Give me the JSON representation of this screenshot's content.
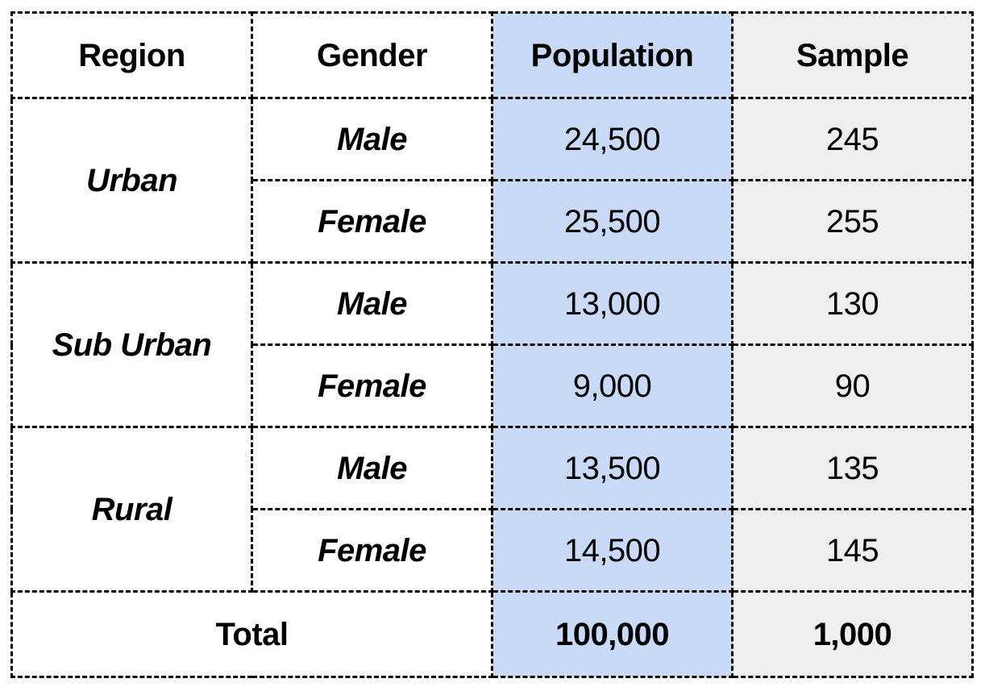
{
  "chart_data": {
    "type": "table",
    "title": "",
    "columns": [
      "Region",
      "Gender",
      "Population",
      "Sample"
    ],
    "rows": [
      [
        "Urban",
        "Male",
        24500,
        245
      ],
      [
        "Urban",
        "Female",
        25500,
        255
      ],
      [
        "Sub Urban",
        "Male",
        13000,
        130
      ],
      [
        "Sub Urban",
        "Female",
        9000,
        90
      ],
      [
        "Rural",
        "Male",
        13500,
        135
      ],
      [
        "Rural",
        "Female",
        14500,
        145
      ]
    ],
    "total_row": [
      "Total",
      100000,
      1000
    ],
    "layout_hints": {
      "merged_cells": "region cells span 2 gender rows; Total spans Region+Gender columns",
      "population_column_highlight": "#c9daf8",
      "sample_column_highlight": "#efefef",
      "border_style": "dashed black"
    }
  },
  "table": {
    "headers": {
      "region": "Region",
      "gender": "Gender",
      "population": "Population",
      "sample": "Sample"
    },
    "groups": [
      {
        "region": "Urban",
        "rows": [
          {
            "gender": "Male",
            "population": "24,500",
            "sample": "245"
          },
          {
            "gender": "Female",
            "population": "25,500",
            "sample": "255"
          }
        ]
      },
      {
        "region": "Sub Urban",
        "rows": [
          {
            "gender": "Male",
            "population": "13,000",
            "sample": "130"
          },
          {
            "gender": "Female",
            "population": "9,000",
            "sample": "90"
          }
        ]
      },
      {
        "region": "Rural",
        "rows": [
          {
            "gender": "Male",
            "population": "13,500",
            "sample": "135"
          },
          {
            "gender": "Female",
            "population": "14,500",
            "sample": "145"
          }
        ]
      }
    ],
    "total": {
      "label": "Total",
      "population": "100,000",
      "sample": "1,000"
    }
  },
  "colors": {
    "population_column_bg": "#c9daf8",
    "sample_column_bg": "#efefef",
    "border": "#000000",
    "text": "#000000",
    "page_background": "#ffffff"
  }
}
